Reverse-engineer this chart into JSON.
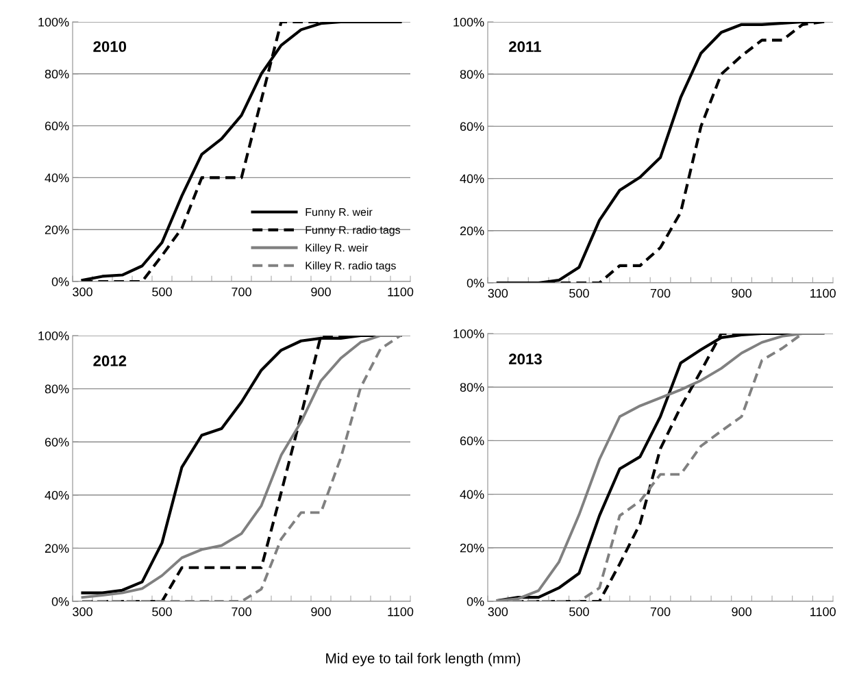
{
  "chart_data": [
    {
      "type": "line",
      "title": "2010",
      "categories": [
        "300",
        null,
        null,
        null,
        "500",
        null,
        null,
        null,
        "700",
        null,
        null,
        null,
        "900",
        null,
        null,
        null,
        "1100"
      ],
      "ylim": [
        0,
        100
      ],
      "yticks": [
        {
          "value": 0,
          "label": "0%"
        },
        {
          "value": 20,
          "label": "20%"
        },
        {
          "value": 40,
          "label": "40%"
        },
        {
          "value": 60,
          "label": "60%"
        },
        {
          "value": 80,
          "label": "80%"
        },
        {
          "value": 100,
          "label": "100%"
        }
      ],
      "grid": "y",
      "legend": "bottom right",
      "series": [
        {
          "name": "Funny R. weir",
          "color": "#000000",
          "line_style": "solid",
          "values": [
            0.5,
            2,
            2.5,
            6,
            15,
            33,
            49,
            55,
            64,
            80,
            91,
            97,
            99.4,
            100,
            100,
            100,
            100
          ]
        },
        {
          "name": "Funny R. radio tags",
          "color": "#000000",
          "line_style": "dashed",
          "values": [
            0,
            0,
            0,
            0,
            10,
            20.5,
            40,
            40,
            40,
            70,
            100,
            100,
            100,
            100,
            100,
            100,
            100
          ]
        },
        {
          "name": "Killey R. weir",
          "color": "#808080",
          "line_style": "solid",
          "values": [
            null,
            null,
            null,
            null,
            null,
            null,
            null,
            null,
            null,
            null,
            null,
            null,
            null,
            null,
            null,
            null,
            null
          ]
        },
        {
          "name": "Killey R. radio tags",
          "color": "#808080",
          "line_style": "dashed",
          "values": [
            null,
            null,
            null,
            null,
            null,
            null,
            null,
            null,
            null,
            null,
            null,
            null,
            null,
            null,
            null,
            null,
            null
          ]
        }
      ]
    },
    {
      "type": "line",
      "title": "2011",
      "categories": [
        "300",
        null,
        null,
        null,
        "500",
        null,
        null,
        null,
        "700",
        null,
        null,
        null,
        "900",
        null,
        null,
        null,
        "1100"
      ],
      "ylim": [
        0,
        100
      ],
      "yticks": [
        {
          "value": 0,
          "label": "0%"
        },
        {
          "value": 20,
          "label": "20%"
        },
        {
          "value": 40,
          "label": "40%"
        },
        {
          "value": 60,
          "label": "60%"
        },
        {
          "value": 80,
          "label": "80%"
        },
        {
          "value": 100,
          "label": "100%"
        }
      ],
      "grid": "y",
      "series": [
        {
          "color": "#000000",
          "line_style": "solid",
          "values": [
            0,
            0,
            0,
            1,
            6,
            24,
            35.5,
            40.5,
            48,
            71,
            88,
            96,
            99,
            99,
            99.5,
            100,
            100
          ]
        },
        {
          "color": "#000000",
          "line_style": "dashed",
          "values": [
            0,
            0,
            0,
            0,
            0,
            0,
            6.6,
            6.6,
            13.5,
            27,
            60,
            80,
            87,
            93,
            93,
            99,
            100
          ]
        }
      ]
    },
    {
      "type": "line",
      "title": "2012",
      "categories": [
        "300",
        null,
        null,
        null,
        "500",
        null,
        null,
        null,
        "700",
        null,
        null,
        null,
        "900",
        null,
        null,
        null,
        "1100"
      ],
      "ylim": [
        0,
        100
      ],
      "yticks": [
        {
          "value": 0,
          "label": "0%"
        },
        {
          "value": 20,
          "label": "20%"
        },
        {
          "value": 40,
          "label": "40%"
        },
        {
          "value": 60,
          "label": "60%"
        },
        {
          "value": 80,
          "label": "80%"
        },
        {
          "value": 100,
          "label": "100%"
        }
      ],
      "grid": "y",
      "xlabel": "Mid eye to tail fork length (mm)",
      "series": [
        {
          "color": "#000000",
          "line_style": "solid",
          "values": [
            3.2,
            3.2,
            4.2,
            7.3,
            22,
            50.5,
            62.5,
            65,
            75,
            87,
            94.5,
            98,
            99,
            99,
            100,
            100,
            100
          ]
        },
        {
          "color": "#000000",
          "line_style": "dashed",
          "values": [
            0,
            0,
            0,
            0,
            0,
            12.7,
            12.7,
            12.7,
            12.7,
            12.7,
            41,
            70,
            100,
            100,
            100,
            100,
            100
          ]
        },
        {
          "color": "#808080",
          "line_style": "solid",
          "values": [
            1.5,
            2.3,
            3.2,
            4.8,
            9.7,
            16.4,
            19.5,
            21,
            25.5,
            36,
            55,
            67.5,
            83,
            91.5,
            97.5,
            100,
            100
          ]
        },
        {
          "color": "#808080",
          "line_style": "dashed",
          "values": [
            0,
            0,
            0,
            0,
            0,
            0,
            0,
            0,
            0,
            4.6,
            23.5,
            33.4,
            33.4,
            54,
            80.5,
            95,
            100
          ]
        }
      ]
    },
    {
      "type": "line",
      "title": "2013",
      "categories": [
        "300",
        null,
        null,
        null,
        "500",
        null,
        null,
        null,
        "700",
        null,
        null,
        null,
        "900",
        null,
        null,
        null,
        "1100"
      ],
      "ylim": [
        0,
        100
      ],
      "yticks": [
        {
          "value": 0,
          "label": "0%"
        },
        {
          "value": 20,
          "label": "20%"
        },
        {
          "value": 40,
          "label": "40%"
        },
        {
          "value": 60,
          "label": "60%"
        },
        {
          "value": 80,
          "label": "80%"
        },
        {
          "value": 100,
          "label": "100%"
        }
      ],
      "grid": "y",
      "series": [
        {
          "color": "#000000",
          "line_style": "solid",
          "values": [
            0.3,
            1.5,
            1.5,
            5,
            10.5,
            32,
            49.5,
            54,
            69,
            89,
            94,
            98.5,
            99.5,
            100,
            100,
            100,
            100
          ]
        },
        {
          "color": "#000000",
          "line_style": "dashed",
          "values": [
            0,
            0,
            0,
            0,
            0,
            0,
            14,
            29,
            57,
            72.5,
            86,
            100,
            100,
            100,
            100,
            100,
            100
          ]
        },
        {
          "color": "#808080",
          "line_style": "solid",
          "values": [
            0.3,
            1,
            4,
            14.6,
            32.4,
            53,
            69,
            73,
            76,
            79,
            82.5,
            87,
            92.7,
            96.7,
            99,
            100,
            100
          ]
        },
        {
          "color": "#808080",
          "line_style": "dashed",
          "values": [
            0,
            0,
            0,
            0,
            0,
            5,
            32,
            37.4,
            47.4,
            47.4,
            58,
            63.6,
            69,
            90,
            94.5,
            100,
            100
          ]
        }
      ]
    }
  ]
}
